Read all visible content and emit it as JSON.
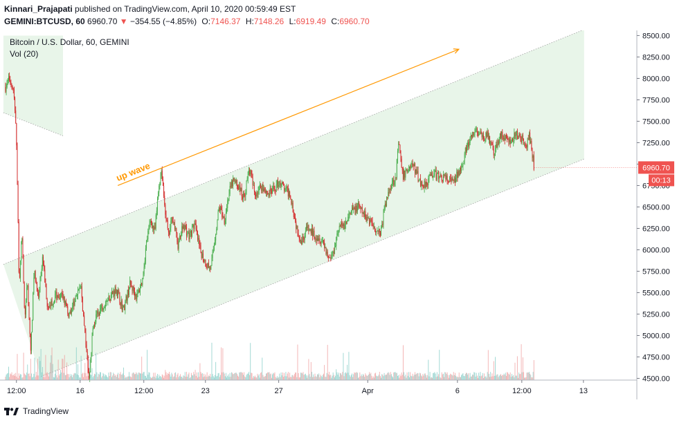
{
  "publish": {
    "author": "Kinnari_Prajapati",
    "text": "published on TradingView.com, April 10, 2020 00:59:49 EST"
  },
  "symbol": {
    "ticker": "GEMINI:BTCUSD, 60",
    "last": "6960.70",
    "change": "−354.55 (−4.85%)",
    "open_label": "O:",
    "open": "7146.37",
    "high_label": "H:",
    "high": "7148.26",
    "low_label": "L:",
    "low": "6919.49",
    "close_label": "C:",
    "close": "6960.70"
  },
  "legend": {
    "title": "Bitcoin / U.S. Dollar, 60, GEMINI",
    "volume": "Vol (20)"
  },
  "annotation": {
    "text": "up wave"
  },
  "price_badge": {
    "price": "6960.70",
    "countdown": "00:13"
  },
  "footer": {
    "brand": "TradingView"
  },
  "colors": {
    "up": "#26a69a",
    "down": "#ef5350",
    "candle_up": "#4caf50",
    "candle_down": "#d32f2f",
    "channel_fill": "#e8f5e9",
    "annotation": "#ff9800",
    "text": "#131722",
    "muted": "#787b86"
  },
  "chart_data": {
    "type": "candlestick",
    "y_axis": {
      "ticks": [
        4500,
        4750,
        5000,
        5250,
        5500,
        5750,
        6000,
        6250,
        6500,
        6750,
        7000,
        7250,
        7500,
        7750,
        8000,
        8250,
        8500
      ],
      "tick_labels": [
        "4500.00",
        "4750.00",
        "5000.00",
        "5250.00",
        "5500.00",
        "5750.00",
        "6000.00",
        "6250.00",
        "6500.00",
        "6750.00",
        "7000.00",
        "7250.00",
        "7500.00",
        "7750.00",
        "8000.00",
        "8250.00",
        "8500.00"
      ],
      "range": [
        4480,
        8560
      ]
    },
    "x_axis": {
      "range": [
        0,
        930
      ],
      "ticks": [
        {
          "label": "12:00",
          "t": 24
        },
        {
          "label": "16",
          "t": 117
        },
        {
          "label": "12:00",
          "t": 210
        },
        {
          "label": "23",
          "t": 300
        },
        {
          "label": "27",
          "t": 407
        },
        {
          "label": "Apr",
          "t": 537
        },
        {
          "label": "6",
          "t": 668
        },
        {
          "label": "12:00",
          "t": 762
        },
        {
          "label": "13",
          "t": 852
        }
      ]
    },
    "price_path": [
      [
        8,
        7900
      ],
      [
        14,
        8000
      ],
      [
        20,
        7850
      ],
      [
        24,
        7300
      ],
      [
        28,
        5600
      ],
      [
        32,
        6200
      ],
      [
        36,
        5200
      ],
      [
        40,
        5600
      ],
      [
        45,
        4800
      ],
      [
        50,
        5800
      ],
      [
        56,
        5400
      ],
      [
        62,
        5900
      ],
      [
        70,
        5300
      ],
      [
        80,
        5450
      ],
      [
        90,
        5500
      ],
      [
        100,
        5250
      ],
      [
        110,
        5400
      ],
      [
        118,
        5600
      ],
      [
        124,
        5000
      ],
      [
        130,
        4500
      ],
      [
        136,
        5100
      ],
      [
        142,
        5250
      ],
      [
        150,
        5350
      ],
      [
        160,
        5450
      ],
      [
        170,
        5550
      ],
      [
        180,
        5300
      ],
      [
        190,
        5600
      ],
      [
        200,
        5450
      ],
      [
        208,
        5650
      ],
      [
        214,
        6100
      ],
      [
        220,
        6350
      ],
      [
        226,
        6200
      ],
      [
        232,
        6750
      ],
      [
        236,
        6950
      ],
      [
        240,
        6550
      ],
      [
        246,
        6150
      ],
      [
        252,
        6400
      ],
      [
        260,
        6050
      ],
      [
        268,
        6300
      ],
      [
        276,
        6150
      ],
      [
        284,
        6300
      ],
      [
        292,
        6000
      ],
      [
        300,
        5850
      ],
      [
        308,
        5780
      ],
      [
        314,
        6150
      ],
      [
        320,
        6500
      ],
      [
        328,
        6350
      ],
      [
        334,
        6650
      ],
      [
        340,
        6800
      ],
      [
        348,
        6750
      ],
      [
        356,
        6600
      ],
      [
        364,
        6950
      ],
      [
        372,
        6650
      ],
      [
        382,
        6750
      ],
      [
        392,
        6650
      ],
      [
        400,
        6700
      ],
      [
        408,
        6800
      ],
      [
        416,
        6700
      ],
      [
        424,
        6650
      ],
      [
        432,
        6300
      ],
      [
        440,
        6100
      ],
      [
        448,
        6250
      ],
      [
        456,
        6200
      ],
      [
        464,
        6150
      ],
      [
        472,
        6100
      ],
      [
        480,
        5900
      ],
      [
        486,
        5950
      ],
      [
        494,
        6250
      ],
      [
        504,
        6300
      ],
      [
        514,
        6450
      ],
      [
        524,
        6500
      ],
      [
        532,
        6400
      ],
      [
        540,
        6350
      ],
      [
        548,
        6250
      ],
      [
        556,
        6200
      ],
      [
        562,
        6500
      ],
      [
        570,
        6750
      ],
      [
        578,
        6850
      ],
      [
        582,
        7250
      ],
      [
        588,
        6850
      ],
      [
        596,
        6950
      ],
      [
        602,
        7000
      ],
      [
        608,
        6900
      ],
      [
        616,
        6750
      ],
      [
        624,
        6800
      ],
      [
        632,
        6900
      ],
      [
        640,
        6850
      ],
      [
        648,
        6850
      ],
      [
        656,
        6800
      ],
      [
        664,
        6800
      ],
      [
        672,
        6950
      ],
      [
        680,
        7150
      ],
      [
        688,
        7300
      ],
      [
        696,
        7400
      ],
      [
        704,
        7300
      ],
      [
        712,
        7350
      ],
      [
        718,
        7200
      ],
      [
        722,
        7100
      ],
      [
        730,
        7350
      ],
      [
        738,
        7300
      ],
      [
        746,
        7250
      ],
      [
        754,
        7350
      ],
      [
        762,
        7300
      ],
      [
        768,
        7150
      ],
      [
        772,
        7350
      ],
      [
        776,
        7200
      ],
      [
        780,
        6960
      ]
    ],
    "channel": {
      "upper": [
        [
          5,
          5830
        ],
        [
          853,
          8570
        ]
      ],
      "lower": [
        [
          60,
          4520
        ],
        [
          853,
          7060
        ]
      ],
      "right_t": 853,
      "earlier": {
        "t0": 5,
        "t1": 92,
        "top": 8500,
        "bottom_start": 7600,
        "bottom_end": 7330
      }
    },
    "arrow": {
      "from": [
        172,
        6750
      ],
      "to": [
        670,
        8340
      ]
    },
    "annotation_at": [
      172,
      6800
    ],
    "volume_max_ratio": 1.0
  }
}
